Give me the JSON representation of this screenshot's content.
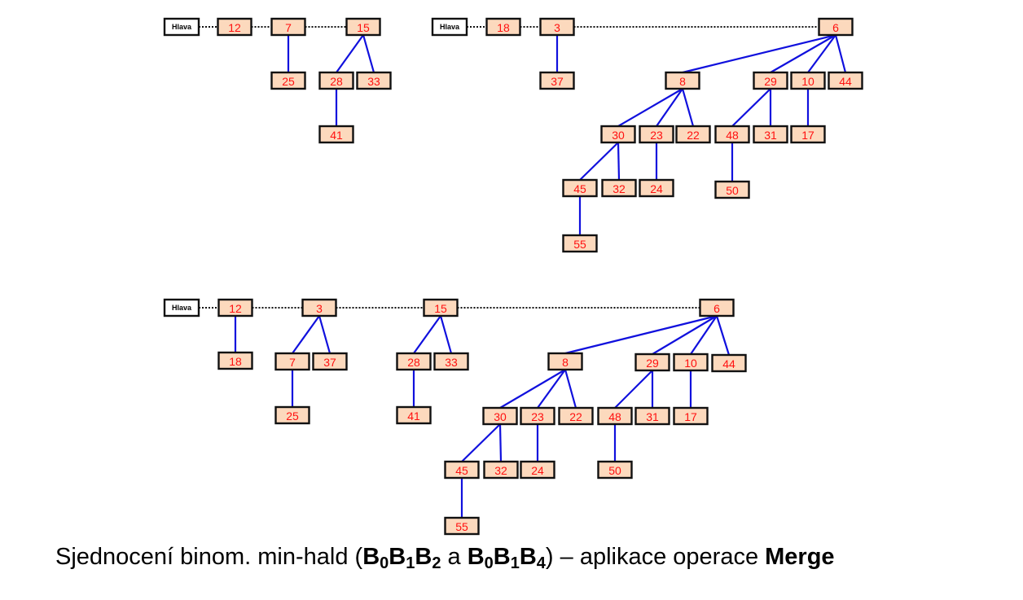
{
  "head_label": "Hlava",
  "colors": {
    "edge": "#1010dd",
    "node_fill": "#fcd9bd",
    "node_text": "#ff1010"
  },
  "heaps": {
    "heap_top_left": {
      "trees": [
        {
          "key": "12",
          "children": []
        },
        {
          "key": "7",
          "children": [
            {
              "key": "25",
              "children": []
            }
          ]
        },
        {
          "key": "15",
          "children": [
            {
              "key": "28",
              "children": [
                {
                  "key": "41",
                  "children": []
                }
              ]
            },
            {
              "key": "33",
              "children": []
            }
          ]
        }
      ]
    },
    "heap_top_right": {
      "trees": [
        {
          "key": "18",
          "children": []
        },
        {
          "key": "3",
          "children": [
            {
              "key": "37",
              "children": []
            }
          ]
        },
        {
          "key": "6",
          "children": [
            {
              "key": "8",
              "children": [
                {
                  "key": "30",
                  "children": [
                    {
                      "key": "45",
                      "children": [
                        {
                          "key": "55",
                          "children": []
                        }
                      ]
                    },
                    {
                      "key": "32",
                      "children": []
                    }
                  ]
                },
                {
                  "key": "23",
                  "children": [
                    {
                      "key": "24",
                      "children": []
                    }
                  ]
                },
                {
                  "key": "22",
                  "children": []
                }
              ]
            },
            {
              "key": "29",
              "children": [
                {
                  "key": "48",
                  "children": [
                    {
                      "key": "50",
                      "children": []
                    }
                  ]
                },
                {
                  "key": "31",
                  "children": []
                }
              ]
            },
            {
              "key": "10",
              "children": [
                {
                  "key": "17",
                  "children": []
                }
              ]
            },
            {
              "key": "44",
              "children": []
            }
          ]
        }
      ]
    },
    "heap_merged": {
      "trees": [
        {
          "key": "12",
          "children": [
            {
              "key": "18",
              "children": []
            }
          ]
        },
        {
          "key": "3",
          "children": [
            {
              "key": "7",
              "children": [
                {
                  "key": "25",
                  "children": []
                }
              ]
            },
            {
              "key": "37",
              "children": []
            }
          ]
        },
        {
          "key": "15",
          "children": [
            {
              "key": "28",
              "children": [
                {
                  "key": "41",
                  "children": []
                }
              ]
            },
            {
              "key": "33",
              "children": []
            }
          ]
        },
        {
          "key": "6",
          "children": [
            {
              "key": "8",
              "children": [
                {
                  "key": "30",
                  "children": [
                    {
                      "key": "45",
                      "children": [
                        {
                          "key": "55",
                          "children": []
                        }
                      ]
                    },
                    {
                      "key": "32",
                      "children": []
                    }
                  ]
                },
                {
                  "key": "23",
                  "children": [
                    {
                      "key": "24",
                      "children": []
                    }
                  ]
                },
                {
                  "key": "22",
                  "children": []
                }
              ]
            },
            {
              "key": "29",
              "children": [
                {
                  "key": "48",
                  "children": [
                    {
                      "key": "50",
                      "children": []
                    }
                  ]
                },
                {
                  "key": "31",
                  "children": []
                }
              ]
            },
            {
              "key": "10",
              "children": [
                {
                  "key": "17",
                  "children": []
                }
              ]
            },
            {
              "key": "44",
              "children": []
            }
          ]
        }
      ]
    }
  },
  "caption": {
    "text_before": "Sjednocení binom. min-hald (",
    "first": {
      "b0": "B",
      "s0": "0",
      "b1": "B",
      "s1": "1",
      "b2": "B",
      "s2": "2"
    },
    "conj": " a ",
    "second": {
      "b0": "B",
      "s0": "0",
      "b1": "B",
      "s1": "1",
      "b2": "B",
      "s2": "4"
    },
    "text_middle": ") – aplikace operace ",
    "operation": "Merge"
  }
}
